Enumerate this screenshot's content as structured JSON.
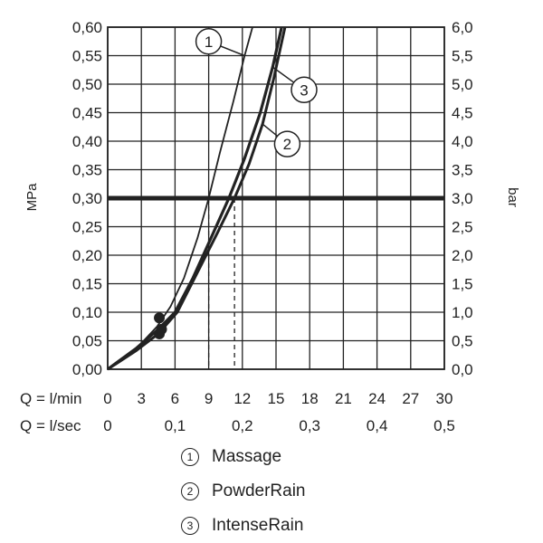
{
  "chart_data": {
    "type": "line",
    "left_axis": {
      "label": "MPa",
      "ylim": [
        0,
        0.6
      ],
      "ticks": [
        "0,00",
        "0,05",
        "0,10",
        "0,15",
        "0,20",
        "0,25",
        "0,30",
        "0,35",
        "0,40",
        "0,45",
        "0,50",
        "0,55",
        "0,60"
      ]
    },
    "right_axis": {
      "label": "bar",
      "ylim": [
        0,
        6
      ],
      "ticks": [
        "0,0",
        "0,5",
        "1,0",
        "1,5",
        "2,0",
        "2,5",
        "3,0",
        "3,5",
        "4,0",
        "4,5",
        "5,0",
        "5,5",
        "6,0"
      ]
    },
    "x_axis_lmin": {
      "label": "Q = l/min",
      "xlim": [
        0,
        30
      ],
      "ticks": [
        "0",
        "3",
        "6",
        "9",
        "12",
        "15",
        "18",
        "21",
        "24",
        "27",
        "30"
      ]
    },
    "x_axis_lsec": {
      "label": "Q = l/sec",
      "xlim": [
        0,
        0.5
      ],
      "ticks": [
        {
          "v": 0,
          "t": "0"
        },
        {
          "v": 0.1,
          "t": "0,1"
        },
        {
          "v": 0.2,
          "t": "0,2"
        },
        {
          "v": 0.3,
          "t": "0,3"
        },
        {
          "v": 0.4,
          "t": "0,4"
        },
        {
          "v": 0.5,
          "t": "0,5"
        }
      ]
    },
    "grid": true,
    "reference_line": {
      "y": 0.3
    },
    "series": [
      {
        "name": "Massage",
        "marker": "1",
        "points": [
          [
            0,
            0
          ],
          [
            2.5,
            0.035
          ],
          [
            4.4,
            0.075
          ],
          [
            5.6,
            0.11
          ],
          [
            6.8,
            0.16
          ],
          [
            8.0,
            0.23
          ],
          [
            9.0,
            0.3
          ],
          [
            10,
            0.38
          ],
          [
            11.2,
            0.47
          ],
          [
            12.2,
            0.55
          ],
          [
            12.9,
            0.6
          ]
        ],
        "label_at": [
          9.0,
          0.575
        ],
        "dot": [
          4.6,
          0.09
        ],
        "drop": 9.0
      },
      {
        "name": "PowderRain",
        "marker": "2",
        "points": [
          [
            0,
            0
          ],
          [
            2.5,
            0.032
          ],
          [
            4.5,
            0.062
          ],
          [
            6.2,
            0.1
          ],
          [
            8.0,
            0.17
          ],
          [
            9.8,
            0.24
          ],
          [
            11.3,
            0.3
          ],
          [
            12.6,
            0.36
          ],
          [
            13.8,
            0.43
          ],
          [
            14.8,
            0.51
          ],
          [
            15.8,
            0.6
          ]
        ],
        "label_at": [
          16.0,
          0.395
        ],
        "dot": [
          4.6,
          0.062
        ],
        "drop": 11.3
      },
      {
        "name": "IntenseRain",
        "marker": "3",
        "points": [
          [
            0,
            0
          ],
          [
            2.5,
            0.036
          ],
          [
            4.5,
            0.07
          ],
          [
            6.0,
            0.1
          ],
          [
            7.6,
            0.16
          ],
          [
            9.2,
            0.23
          ],
          [
            10.8,
            0.3
          ],
          [
            12.2,
            0.37
          ],
          [
            13.6,
            0.45
          ],
          [
            14.7,
            0.53
          ],
          [
            15.5,
            0.6
          ]
        ],
        "label_at": [
          17.5,
          0.49
        ],
        "dot": [
          4.8,
          0.07
        ],
        "drop": null
      }
    ]
  },
  "legend": [
    {
      "mark": "1",
      "label": "Massage"
    },
    {
      "mark": "2",
      "label": "PowderRain"
    },
    {
      "mark": "3",
      "label": "IntenseRain"
    }
  ]
}
